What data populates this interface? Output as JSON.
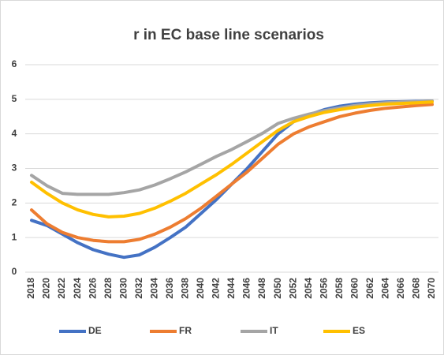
{
  "chart_data": {
    "type": "line",
    "title": "r in EC base line scenarios",
    "categories": [
      "2018",
      "2020",
      "2022",
      "2024",
      "2026",
      "2028",
      "2030",
      "2032",
      "2034",
      "2036",
      "2038",
      "2040",
      "2042",
      "2044",
      "2046",
      "2048",
      "2050",
      "2052",
      "2054",
      "2056",
      "2058",
      "2060",
      "2062",
      "2064",
      "2066",
      "2068",
      "2070"
    ],
    "series": [
      {
        "name": "DE",
        "color": "#4472c4",
        "values": [
          1.5,
          1.35,
          1.1,
          0.85,
          0.65,
          0.52,
          0.43,
          0.5,
          0.72,
          1.0,
          1.3,
          1.7,
          2.1,
          2.55,
          3.0,
          3.5,
          4.0,
          4.35,
          4.55,
          4.7,
          4.8,
          4.86,
          4.9,
          4.92,
          4.93,
          4.94,
          4.95
        ]
      },
      {
        "name": "FR",
        "color": "#ed7d31",
        "values": [
          1.8,
          1.4,
          1.15,
          1.0,
          0.92,
          0.88,
          0.88,
          0.95,
          1.1,
          1.3,
          1.55,
          1.85,
          2.2,
          2.55,
          2.9,
          3.3,
          3.7,
          4.0,
          4.2,
          4.35,
          4.5,
          4.6,
          4.68,
          4.74,
          4.78,
          4.82,
          4.85
        ]
      },
      {
        "name": "IT",
        "color": "#a5a5a5",
        "values": [
          2.8,
          2.5,
          2.28,
          2.25,
          2.25,
          2.25,
          2.3,
          2.38,
          2.52,
          2.7,
          2.9,
          3.12,
          3.35,
          3.55,
          3.78,
          4.02,
          4.3,
          4.45,
          4.57,
          4.67,
          4.75,
          4.82,
          4.87,
          4.9,
          4.92,
          4.93,
          4.95
        ]
      },
      {
        "name": "ES",
        "color": "#ffc000",
        "values": [
          2.6,
          2.28,
          2.0,
          1.8,
          1.67,
          1.6,
          1.62,
          1.7,
          1.85,
          2.05,
          2.28,
          2.55,
          2.82,
          3.12,
          3.45,
          3.78,
          4.1,
          4.35,
          4.5,
          4.62,
          4.7,
          4.77,
          4.82,
          4.86,
          4.88,
          4.9,
          4.92
        ]
      }
    ],
    "ylim": [
      0,
      6
    ],
    "yticks": [
      0,
      1,
      2,
      3,
      4,
      5,
      6
    ],
    "grid": true,
    "legend": "bottom"
  }
}
